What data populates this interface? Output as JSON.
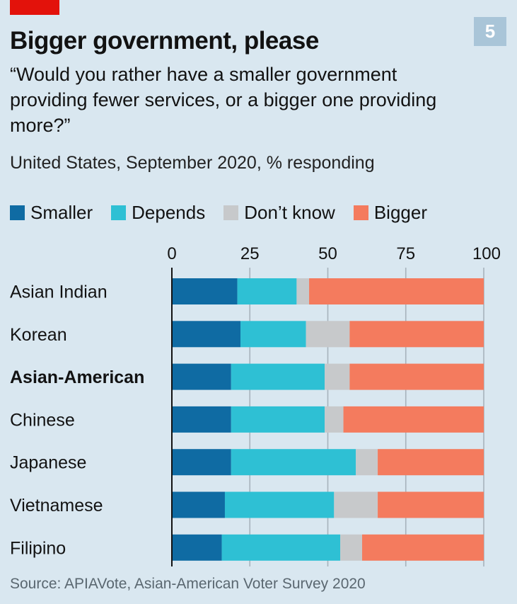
{
  "header": {
    "chart_number": "5",
    "title": "Bigger government, please",
    "subtitle": "“Would you rather have a smaller government providing fewer services, or a bigger one providing more?”",
    "subtitle2": "United States, September 2020, % responding"
  },
  "footer": {
    "source": "Source: APIAVote, Asian-American Voter Survey 2020"
  },
  "colors": {
    "brand_red": "#e3120b",
    "smaller": "#0f6ba3",
    "depends": "#2ec0d4",
    "dont_know": "#c7c9cb",
    "bigger": "#f47b5e",
    "background": "#d9e7f0"
  },
  "chart_data": {
    "type": "bar",
    "orientation": "horizontal",
    "stacked": true,
    "title": "Bigger government, please",
    "xlabel": "",
    "ylabel": "",
    "xlim": [
      0,
      100
    ],
    "xticks": [
      "0",
      "25",
      "50",
      "75",
      "100"
    ],
    "xtick_position": "top",
    "grid": true,
    "legend_position": "top",
    "categories": [
      "Asian Indian",
      "Korean",
      "Asian-American",
      "Chinese",
      "Japanese",
      "Vietnamese",
      "Filipino"
    ],
    "highlight_category": "Asian-American",
    "series": [
      {
        "name": "Smaller",
        "color": "#0f6ba3",
        "values": [
          21,
          22,
          19,
          19,
          19,
          17,
          16
        ]
      },
      {
        "name": "Depends",
        "color": "#2ec0d4",
        "values": [
          19,
          21,
          30,
          30,
          40,
          35,
          38
        ]
      },
      {
        "name": "Don’t know",
        "color": "#c7c9cb",
        "values": [
          4,
          14,
          8,
          6,
          7,
          14,
          7
        ]
      },
      {
        "name": "Bigger",
        "color": "#f47b5e",
        "values": [
          56,
          43,
          43,
          45,
          34,
          34,
          39
        ]
      }
    ]
  }
}
